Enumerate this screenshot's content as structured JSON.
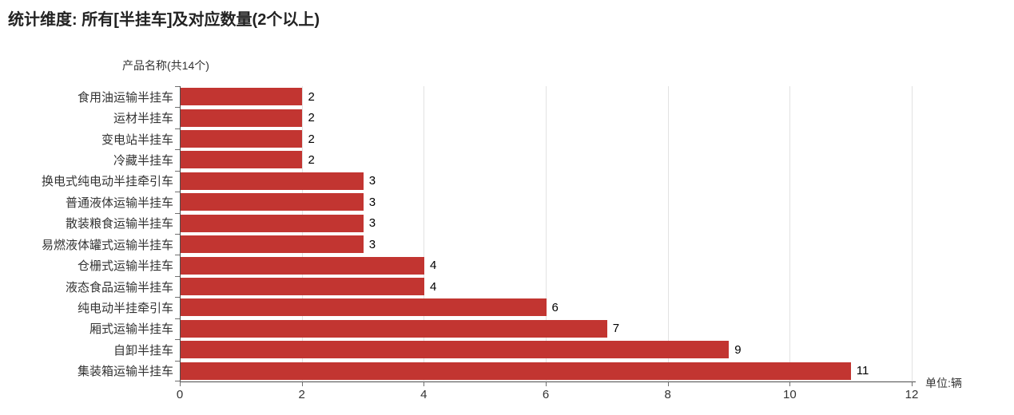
{
  "title": "统计维度: 所有[半挂车]及对应数量(2个以上)",
  "axis_name": "产品名称(共14个)",
  "unit_label": "单位:辆",
  "colors": {
    "bar": "#c23531",
    "grid": "#e2e2e2",
    "axis": "#4d4d4d",
    "tick": "#6e6e6e",
    "label_text": "#333333",
    "value_text": "#000000",
    "title_text": "#222222"
  },
  "chart_data": {
    "type": "bar",
    "orientation": "horizontal",
    "title": "统计维度: 所有[半挂车]及对应数量(2个以上)",
    "ylabel": "产品名称(共14个)",
    "unit": "单位:辆",
    "categories": [
      "食用油运输半挂车",
      "运材半挂车",
      "变电站半挂车",
      "冷藏半挂车",
      "换电式纯电动半挂牵引车",
      "普通液体运输半挂车",
      "散装粮食运输半挂车",
      "易燃液体罐式运输半挂车",
      "仓栅式运输半挂车",
      "液态食品运输半挂车",
      "纯电动半挂牵引车",
      "厢式运输半挂车",
      "自卸半挂车",
      "集装箱运输半挂车"
    ],
    "values": [
      2,
      2,
      2,
      2,
      3,
      3,
      3,
      3,
      4,
      4,
      6,
      7,
      9,
      11
    ],
    "xlim": [
      0,
      12
    ],
    "xticks": [
      0,
      2,
      4,
      6,
      8,
      10,
      12
    ],
    "grid": true,
    "legend": false,
    "value_labels": "outside-end"
  }
}
